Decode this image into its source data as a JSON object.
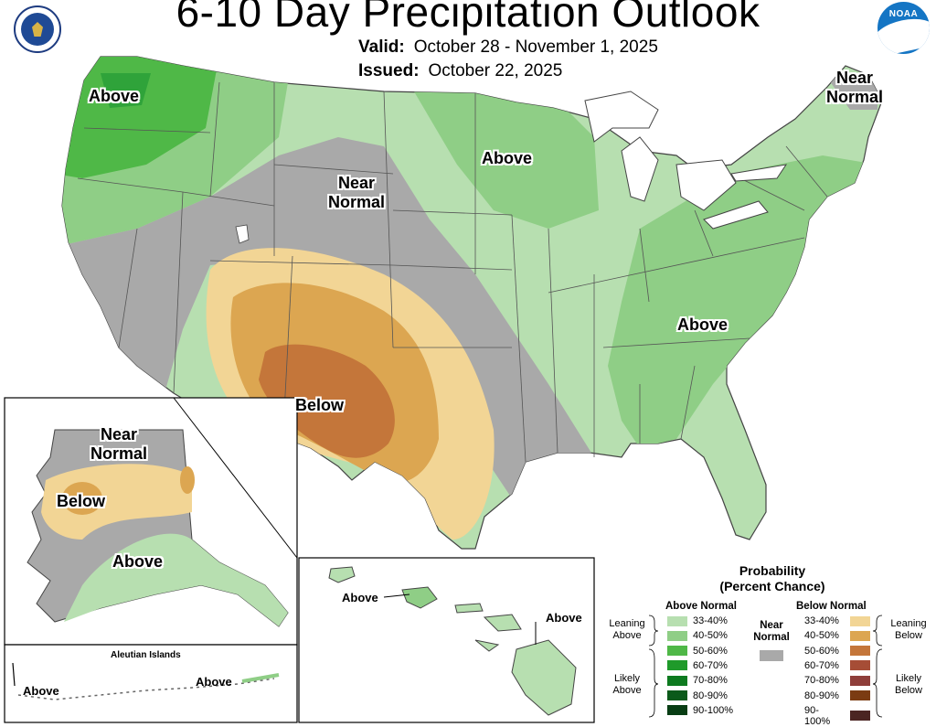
{
  "title": "6-10 Day Precipitation Outlook",
  "valid": {
    "label": "Valid:",
    "value": "October 28 - November 1, 2025"
  },
  "issued": {
    "label": "Issued:",
    "value": "October 22, 2025"
  },
  "logos": {
    "left": "commerce-seal-icon",
    "right": "noaa-logo-icon"
  },
  "map_labels": {
    "above_nw": "Above",
    "near_normal_ne_1": "Near",
    "near_normal_ne_2": "Normal",
    "near_normal_central_1": "Near",
    "near_normal_central_2": "Normal",
    "above_north": "Above",
    "above_east": "Above",
    "below_sw": "Below"
  },
  "alaska": {
    "near_normal_1": "Near",
    "near_normal_2": "Normal",
    "below": "Below",
    "above": "Above",
    "aleutian_title": "Aleutian Islands",
    "aleutian_above_left": "Above",
    "aleutian_above_right": "Above"
  },
  "hawaii": {
    "above_west": "Above",
    "above_east": "Above"
  },
  "legend": {
    "title_1": "Probability",
    "title_2": "(Percent Chance)",
    "above_header": "Above Normal",
    "below_header": "Below Normal",
    "near_1": "Near",
    "near_2": "Normal",
    "leaning_above_1": "Leaning",
    "leaning_above_2": "Above",
    "likely_above_1": "Likely",
    "likely_above_2": "Above",
    "leaning_below_1": "Leaning",
    "leaning_below_2": "Below",
    "likely_below_1": "Likely",
    "likely_below_2": "Below",
    "above_items": [
      {
        "label": "33-40%",
        "color": "#b7dfb0"
      },
      {
        "label": "40-50%",
        "color": "#8fce86"
      },
      {
        "label": "50-60%",
        "color": "#4fb847"
      },
      {
        "label": "60-70%",
        "color": "#1f9a2a"
      },
      {
        "label": "70-80%",
        "color": "#0d7a1f"
      },
      {
        "label": "80-90%",
        "color": "#0b5a1a"
      },
      {
        "label": "90-100%",
        "color": "#083d14"
      }
    ],
    "below_items": [
      {
        "label": "33-40%",
        "color": "#f2d595"
      },
      {
        "label": "40-50%",
        "color": "#dca651"
      },
      {
        "label": "50-60%",
        "color": "#c4763a"
      },
      {
        "label": "60-70%",
        "color": "#a64d36"
      },
      {
        "label": "70-80%",
        "color": "#8f3e3a"
      },
      {
        "label": "80-90%",
        "color": "#7b3b12"
      },
      {
        "label": "90-100%",
        "color": "#4b2522"
      }
    ],
    "near_color": "#a9a9a9"
  }
}
